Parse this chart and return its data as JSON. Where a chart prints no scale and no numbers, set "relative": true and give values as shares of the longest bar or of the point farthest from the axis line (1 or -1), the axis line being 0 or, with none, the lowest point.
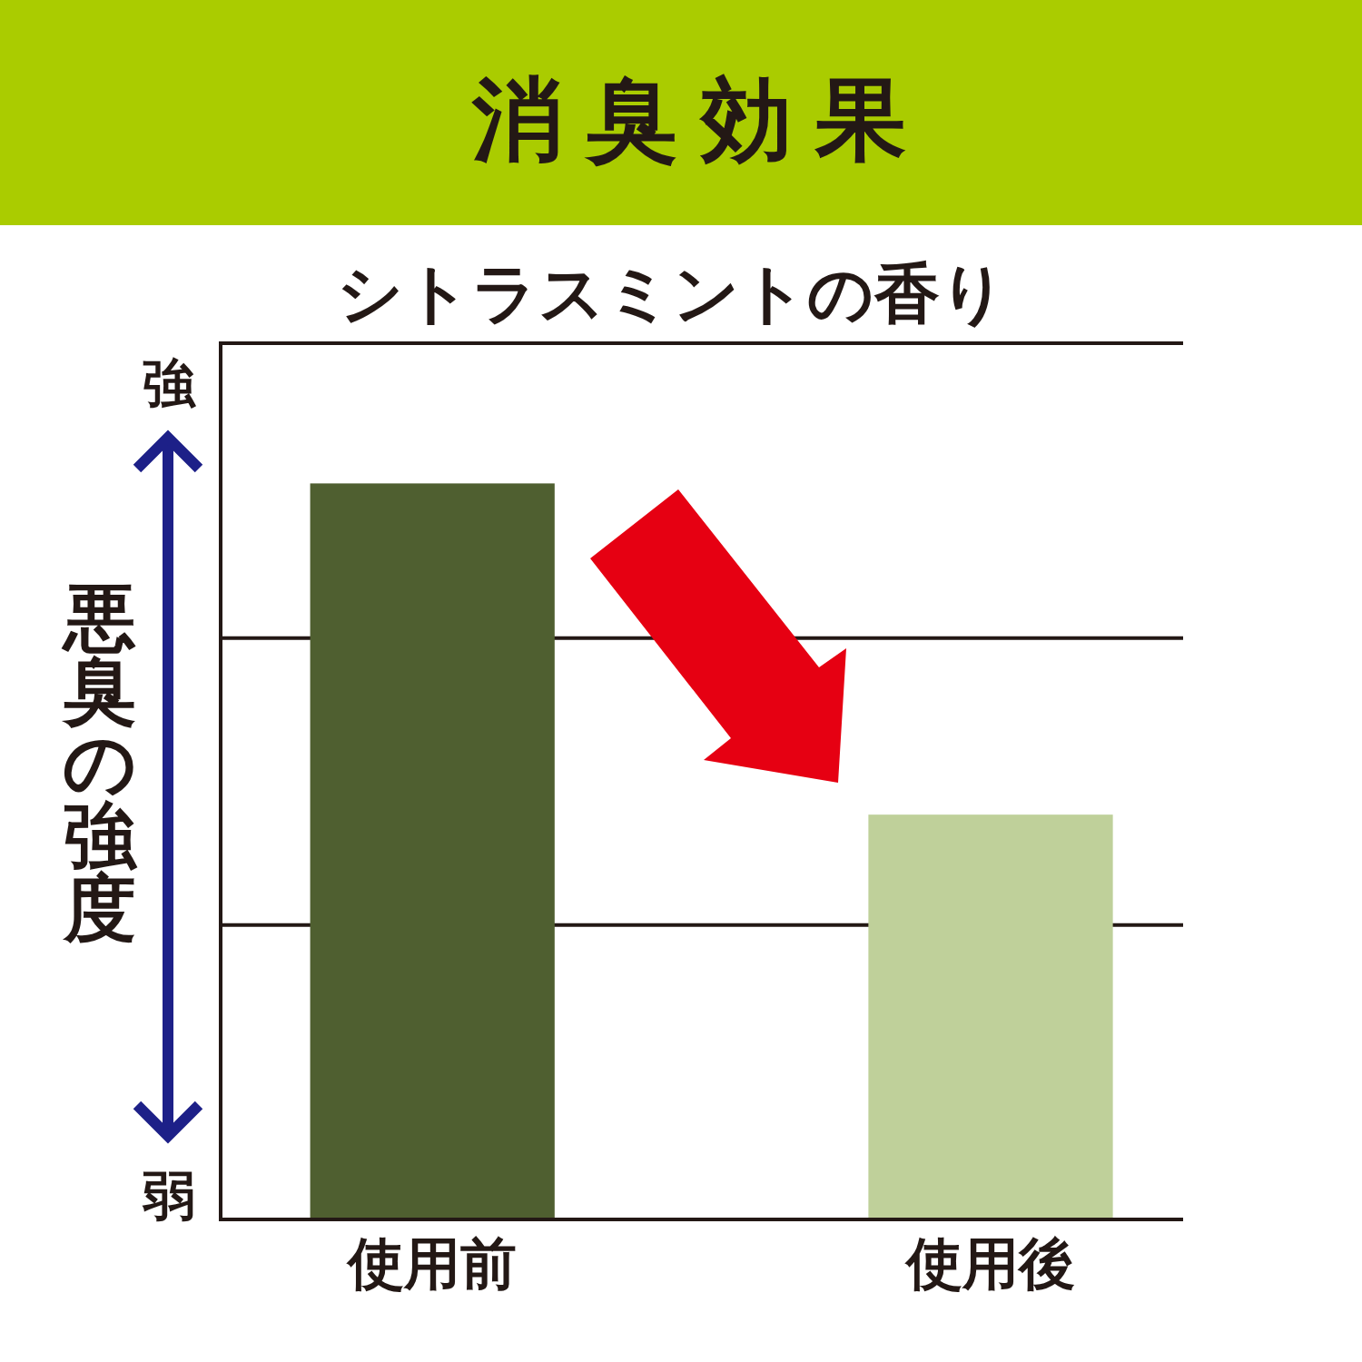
{
  "chart_data": {
    "type": "bar",
    "title": "消臭効果",
    "subtitle": "シトラスミントの香り",
    "ylabel": "悪臭の強度",
    "annotations": [
      "強",
      "弱"
    ],
    "categories": [
      "使用前",
      "使用後"
    ],
    "values": [
      1,
      0.55
    ],
    "colors": [
      "#4f5f30",
      "#bfd09a"
    ],
    "relative": true,
    "ref_lines": [
      {
        "axis": "y",
        "value": 0.4,
        "color": "#231815"
      },
      {
        "axis": "y",
        "value": 0.79,
        "color": "#231815"
      }
    ]
  }
}
